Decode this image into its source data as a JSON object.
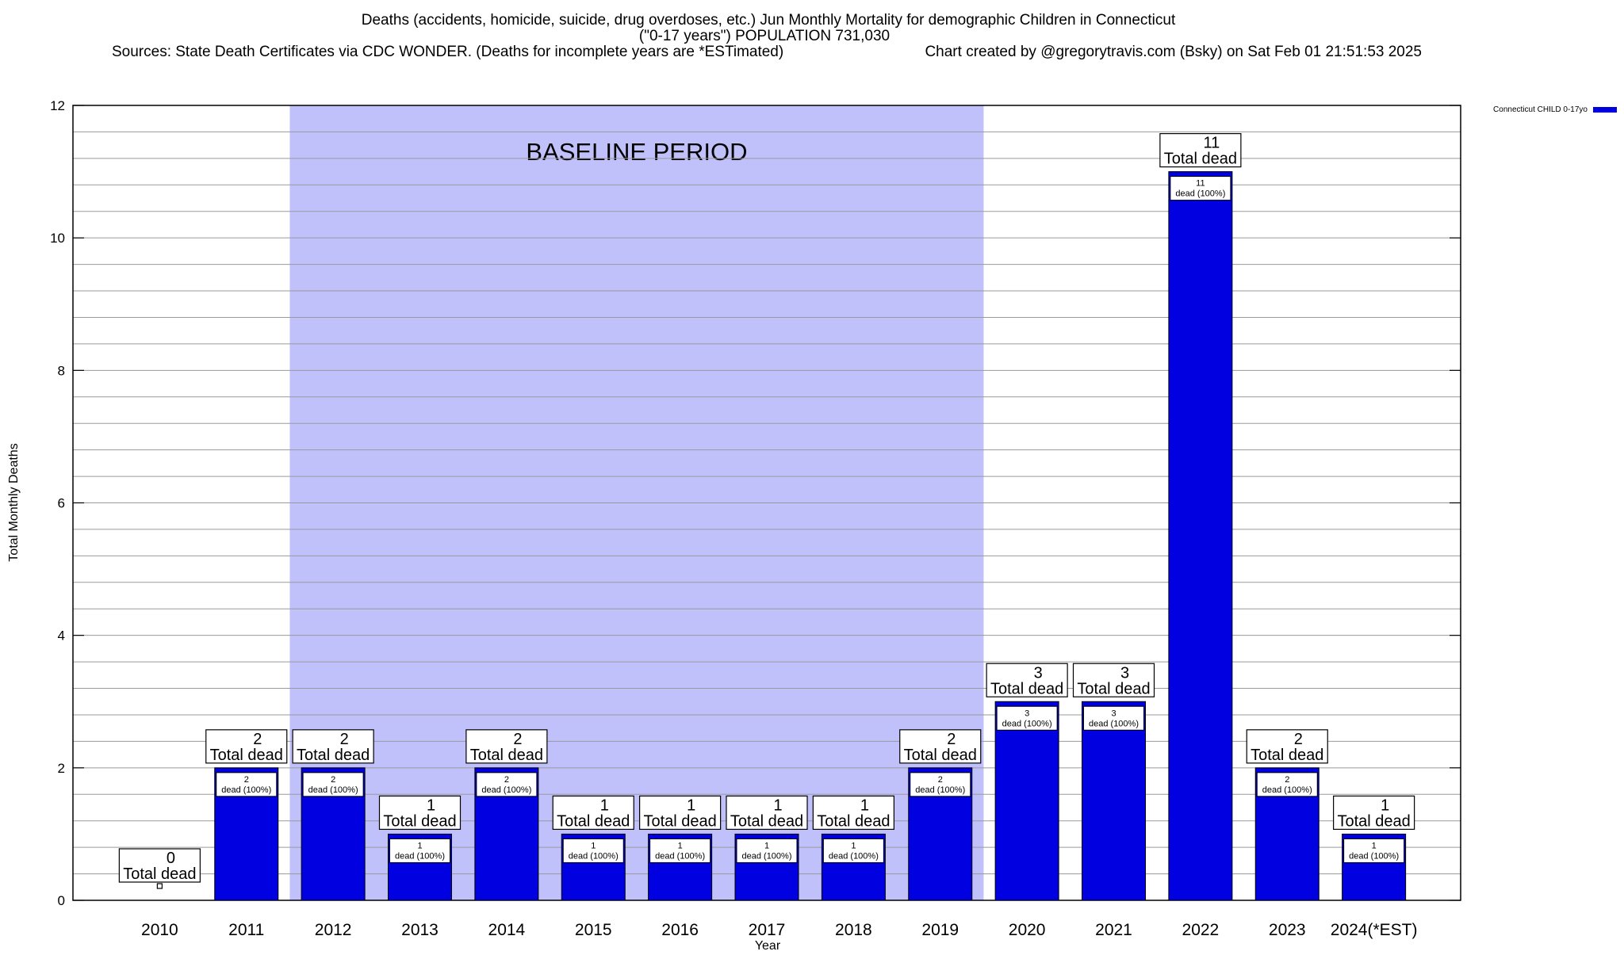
{
  "chart_data": {
    "type": "bar",
    "title": "Deaths (accidents, homicide, suicide, drug overdoses, etc.) Jun Monthly Mortality for demographic Children in Connecticut",
    "subtitle": "(\"0-17 years\") POPULATION 731,030",
    "sources": "Sources: State Death Certificates via CDC WONDER. (Deaths for incomplete years are *ESTimated)",
    "credit": "Chart created by @gregorytravis.com (Bsky) on Sat Feb 01 21:51:53 2025",
    "xlabel": "Year",
    "ylabel": "Total Monthly Deaths",
    "ylim": [
      0,
      12
    ],
    "y_ticks": [
      0,
      2,
      4,
      6,
      8,
      10,
      12
    ],
    "grid": true,
    "legend_placement": "top-right",
    "categories": [
      "2010",
      "2011",
      "2012",
      "2013",
      "2014",
      "2015",
      "2016",
      "2017",
      "2018",
      "2019",
      "2020",
      "2021",
      "2022",
      "2023",
      "2024(*EST)"
    ],
    "series": [
      {
        "name": "Connecticut CHILD 0-17yo",
        "color": "#0000e0",
        "values": [
          0,
          2,
          2,
          1,
          2,
          1,
          1,
          1,
          1,
          2,
          3,
          3,
          11,
          2,
          1
        ]
      }
    ],
    "total_label_suffix": "Total dead",
    "inner_label_suffix": "dead (100%)",
    "baseline_period": {
      "label": "BASELINE PERIOD",
      "start": "2012",
      "end": "2019",
      "color": "#c0c0fa"
    }
  }
}
